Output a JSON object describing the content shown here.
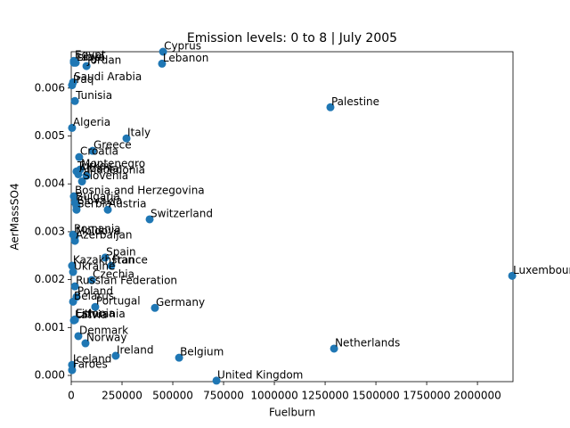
{
  "chart_data": {
    "type": "scatter",
    "title": "Emission levels: 0 to 8 | July 2005",
    "xlabel": "Fuelburn",
    "ylabel": "AerMassSO4",
    "color": "#1f77b4",
    "xlim": [
      0,
      2175000
    ],
    "ylim": [
      -0.00013,
      0.00676
    ],
    "xticks": [
      0,
      250000,
      500000,
      750000,
      1000000,
      1250000,
      1500000,
      1750000,
      2000000
    ],
    "yticks": [
      {
        "value": 0,
        "label": "0.000"
      },
      {
        "value": 0.001,
        "label": "0.001"
      },
      {
        "value": 0.002,
        "label": "0.002"
      },
      {
        "value": 0.003,
        "label": "0.003"
      },
      {
        "value": 0.004,
        "label": "0.004"
      },
      {
        "value": 0.005,
        "label": "0.005"
      },
      {
        "value": 0.006,
        "label": "0.006"
      }
    ],
    "labels": [
      "Israel",
      "Egypt",
      "Libya",
      "Jordan",
      "Cyprus",
      "Lebanon",
      "Saudi Arabia",
      "Iraq",
      "Tunisia",
      "Palestine",
      "Algeria",
      "Italy",
      "Greece",
      "Croatia",
      "Montenegro",
      "Turkey",
      "Albania",
      "Macedonia",
      "Slovenia",
      "Bosnia and Herzegovina",
      "Bulgaria",
      "Slovakia",
      "Serbia",
      "Austria",
      "Switzerland",
      "Romania",
      "Moldova",
      "Azerbaijan",
      "Spain",
      "France",
      "Kazakhstan",
      "Ukraine",
      "Luxembourg",
      "Czechia",
      "Russian Federation",
      "Poland",
      "Belarus",
      "Portugal",
      "Germany",
      "Estonia",
      "Latvia",
      "Lithuania",
      "Denmark",
      "Norway",
      "Netherlands",
      "Ireland",
      "Belgium",
      "Iceland",
      "Faroes",
      "United Kingdom"
    ],
    "x": [
      13000,
      13000,
      22000,
      75000,
      452000,
      447000,
      9000,
      4000,
      18000,
      1276000,
      4000,
      272000,
      105000,
      39000,
      44000,
      26000,
      35000,
      75000,
      53000,
      13000,
      18000,
      26000,
      26000,
      180000,
      386000,
      9000,
      18000,
      18000,
      167000,
      197000,
      4000,
      9000,
      2171000,
      101000,
      18000,
      26000,
      9000,
      118000,
      412000,
      18000,
      13000,
      18000,
      35000,
      70000,
      1294000,
      219000,
      531000,
      4000,
      4000,
      715000
    ],
    "values": [
      0.00653,
      0.00657,
      0.00653,
      0.00646,
      0.00676,
      0.00651,
      0.00612,
      0.00606,
      0.00573,
      0.0056,
      0.00517,
      0.00495,
      0.00469,
      0.00456,
      0.0043,
      0.00426,
      0.0042,
      0.00417,
      0.00405,
      0.00374,
      0.00361,
      0.00353,
      0.00346,
      0.00346,
      0.00326,
      0.00294,
      0.0029,
      0.00281,
      0.00246,
      0.00229,
      0.00229,
      0.00216,
      0.00208,
      0.00199,
      0.00186,
      0.00164,
      0.00154,
      0.00143,
      0.00141,
      0.00117,
      0.00115,
      0.00116,
      0.00082,
      0.00067,
      0.00056,
      0.00041,
      0.00037,
      0.00022,
      0.00011,
      -0.00011
    ]
  }
}
